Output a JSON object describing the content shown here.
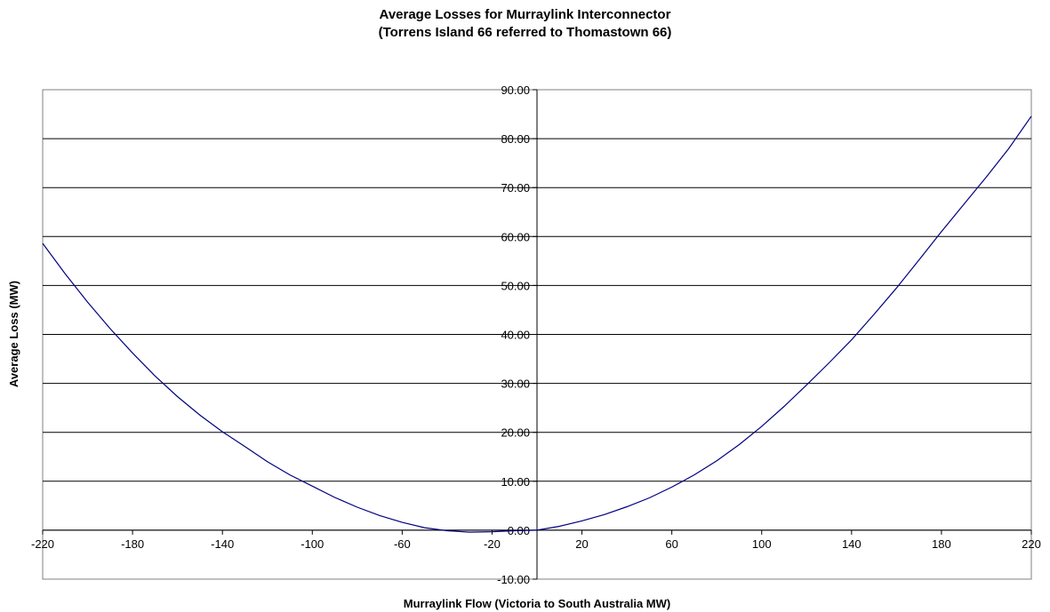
{
  "chart_data": {
    "type": "line",
    "title": "Average Losses for Murraylink Interconnector",
    "subtitle": "(Torrens Island 66 referred to Thomastown 66)",
    "xlabel": "Murraylink Flow (Victoria to South Australia MW)",
    "ylabel": "Average Loss (MW)",
    "xlim": [
      -220,
      220
    ],
    "ylim": [
      -10,
      90
    ],
    "xticks": [
      -220,
      -180,
      -140,
      -100,
      -60,
      -20,
      20,
      60,
      100,
      140,
      180,
      220
    ],
    "yticks": [
      "90.00",
      "80.00",
      "70.00",
      "60.00",
      "50.00",
      "40.00",
      "30.00",
      "20.00",
      "10.00",
      "0.00",
      "-10.00"
    ],
    "grid": "horizontal",
    "legend": "none",
    "series_color": "#000080",
    "series": [
      {
        "x": [
          -220,
          -210,
          -200,
          -190,
          -180,
          -170,
          -160,
          -150,
          -140,
          -130,
          -120,
          -110,
          -100,
          -90,
          -80,
          -70,
          -60,
          -50,
          -40,
          -30,
          -20,
          -10,
          0,
          10,
          20,
          30,
          40,
          50,
          60,
          70,
          80,
          90,
          100,
          110,
          120,
          130,
          140,
          150,
          160,
          170,
          180,
          190,
          200,
          210,
          220
        ],
        "y": [
          58.6,
          52.4,
          46.6,
          41.2,
          36.2,
          31.5,
          27.3,
          23.5,
          20.1,
          17.1,
          14.0,
          11.3,
          9.0,
          6.7,
          4.7,
          3.0,
          1.6,
          0.5,
          -0.1,
          -0.4,
          -0.3,
          -0.1,
          0.0,
          0.8,
          1.9,
          3.2,
          4.8,
          6.6,
          8.8,
          11.3,
          14.2,
          17.5,
          21.2,
          25.3,
          29.7,
          34.2,
          38.9,
          44.1,
          49.5,
          55.2,
          61.0,
          66.6,
          72.2,
          78.0,
          84.6
        ]
      }
    ]
  }
}
